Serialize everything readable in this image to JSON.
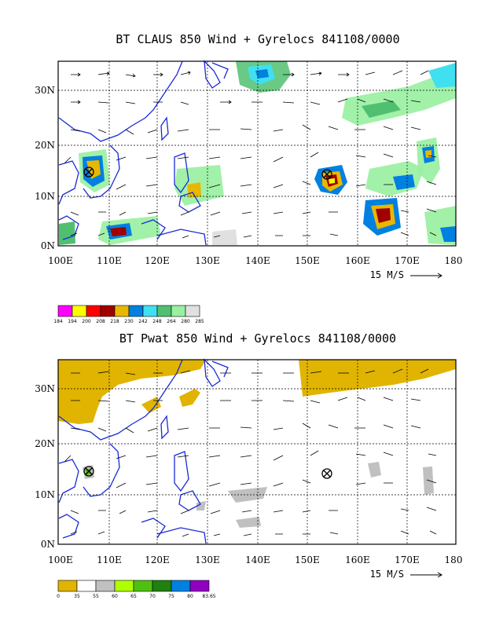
{
  "panels": [
    {
      "id": "top",
      "title": "BT CLAUS 850 Wind + Gyrelocs 841108/0000",
      "lat_labels": [
        "30N",
        "20N",
        "10N",
        "0N"
      ],
      "lon_labels": [
        "100E",
        "110E",
        "120E",
        "130E",
        "140E",
        "150E",
        "160E",
        "170E",
        "180"
      ],
      "vector_ref": "15 M/S",
      "colorbar": {
        "colors": [
          "#ff00ff",
          "#ffff00",
          "#ff0000",
          "#a00000",
          "#e8b800",
          "#0080e0",
          "#40e0f0",
          "#50c070",
          "#98f0a0",
          "#e0e0e0"
        ],
        "labels": [
          "184",
          "194",
          "200",
          "208",
          "218",
          "230",
          "242",
          "248",
          "264",
          "280",
          "285"
        ]
      },
      "gyrelocs": [
        {
          "lon": 106,
          "lat": 14.5
        },
        {
          "lon": 154,
          "lat": 14.5
        }
      ]
    },
    {
      "id": "bottom",
      "title": "BT Pwat 850 Wind + Gyrelocs 841108/0000",
      "lat_labels": [
        "30N",
        "20N",
        "10N",
        "0N"
      ],
      "lon_labels": [
        "100E",
        "110E",
        "120E",
        "130E",
        "140E",
        "150E",
        "160E",
        "170E",
        "180"
      ],
      "vector_ref": "15 M/S",
      "colorbar": {
        "colors": [
          "#e0b400",
          "#ffffff",
          "#c0c0c0",
          "#b0ff00",
          "#50c010",
          "#208010",
          "#0080e0",
          "#9000c0"
        ],
        "labels": [
          "0",
          "35",
          "55",
          "60",
          "65",
          "70",
          "75",
          "80",
          "83.65"
        ]
      },
      "gyrelocs": [
        {
          "lon": 106,
          "lat": 14.5
        },
        {
          "lon": 154,
          "lat": 14.5
        }
      ]
    }
  ]
}
